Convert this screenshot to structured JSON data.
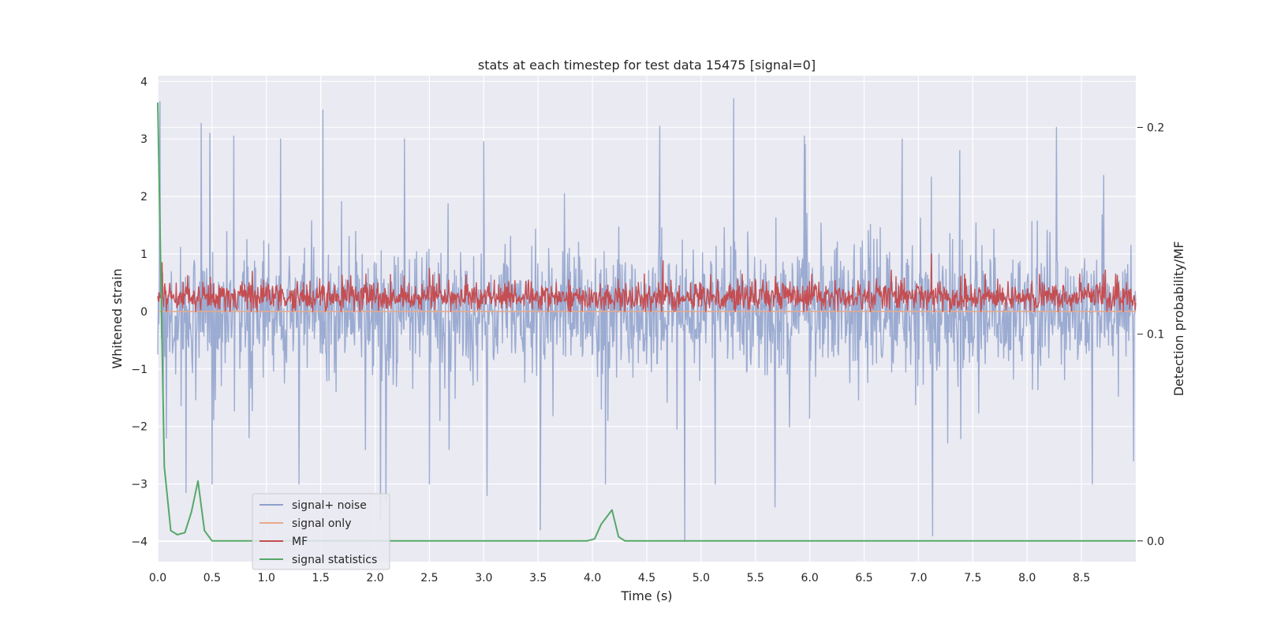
{
  "chart_data": {
    "type": "line",
    "title": "stats at each timestep for test data 15475 [signal=0]",
    "xlabel": "Time (s)",
    "ylabel": "Whitened strain",
    "y2label": "Detection probability/MF",
    "xlim": [
      0,
      9.0
    ],
    "ylim": [
      -4.35,
      4.1
    ],
    "y2lim": [
      -0.01,
      0.225
    ],
    "x_ticks": [
      0.0,
      0.5,
      1.0,
      1.5,
      2.0,
      2.5,
      3.0,
      3.5,
      4.0,
      4.5,
      5.0,
      5.5,
      6.0,
      6.5,
      7.0,
      7.5,
      8.0,
      8.5
    ],
    "x_tick_labels": [
      "0.0",
      "0.5",
      "1.0",
      "1.5",
      "2.0",
      "2.5",
      "3.0",
      "3.5",
      "4.0",
      "4.5",
      "5.0",
      "5.5",
      "6.0",
      "6.5",
      "7.0",
      "7.5",
      "8.0",
      "8.5"
    ],
    "y_ticks": [
      4,
      3,
      2,
      1,
      0,
      -1,
      -2,
      -3,
      -4
    ],
    "y_tick_labels": [
      "4",
      "3",
      "2",
      "1",
      "0",
      "−1",
      "−2",
      "−3",
      "−4"
    ],
    "y2_ticks": [
      0.2,
      0.1,
      0.0
    ],
    "y2_tick_labels": [
      "0.2",
      "0.1",
      "0.0"
    ],
    "grid": true,
    "legend_position": "lower-left",
    "colors": {
      "signal_noise": "#8da0cb",
      "signal_only": "#e8a98a",
      "mf": "#c44e52",
      "signal_statistics": "#55a868",
      "plot_background": "#eaeaf2",
      "grid": "#ffffff"
    },
    "series": [
      {
        "name": "signal+ noise",
        "axis": "left",
        "style": "noise",
        "sample_count": 1800,
        "seed": 15475,
        "amplitude": 0.75,
        "peaks": [
          {
            "x": 0.02,
            "y": 3.65
          },
          {
            "x": 0.05,
            "y": -1.45
          },
          {
            "x": 0.08,
            "y": -2.2
          },
          {
            "x": 0.4,
            "y": 3.27
          },
          {
            "x": 0.48,
            "y": 3.1
          },
          {
            "x": 0.5,
            "y": -3.0
          },
          {
            "x": 0.26,
            "y": -3.15
          },
          {
            "x": 0.7,
            "y": 3.05
          },
          {
            "x": 1.13,
            "y": 3.0
          },
          {
            "x": 1.52,
            "y": 3.5
          },
          {
            "x": 1.3,
            "y": -3.0
          },
          {
            "x": 2.05,
            "y": -3.6
          },
          {
            "x": 2.1,
            "y": -3.3
          },
          {
            "x": 2.27,
            "y": 3.0
          },
          {
            "x": 2.5,
            "y": -3.0
          },
          {
            "x": 3.0,
            "y": 2.95
          },
          {
            "x": 3.03,
            "y": -3.2
          },
          {
            "x": 3.52,
            "y": -3.8
          },
          {
            "x": 4.12,
            "y": -3.0
          },
          {
            "x": 4.62,
            "y": 3.22
          },
          {
            "x": 4.85,
            "y": -4.0
          },
          {
            "x": 5.3,
            "y": 3.7
          },
          {
            "x": 5.13,
            "y": -3.0
          },
          {
            "x": 5.68,
            "y": -3.4
          },
          {
            "x": 5.95,
            "y": 3.05
          },
          {
            "x": 6.85,
            "y": 3.0
          },
          {
            "x": 7.13,
            "y": -3.9
          },
          {
            "x": 7.38,
            "y": 2.8
          },
          {
            "x": 8.27,
            "y": 3.2
          },
          {
            "x": 8.6,
            "y": -3.0
          },
          {
            "x": 8.98,
            "y": -2.6
          }
        ]
      },
      {
        "name": "signal only",
        "axis": "left",
        "style": "flat",
        "x": [
          0.0,
          9.0
        ],
        "y": [
          0.0,
          0.0
        ]
      },
      {
        "name": "MF",
        "axis": "left",
        "style": "noise-positive",
        "sample_count": 1800,
        "seed": 7.1,
        "baseline": 0.25,
        "amplitude": 0.17,
        "peaks": [
          {
            "x": 0.04,
            "y": 0.85
          },
          {
            "x": 0.87,
            "y": 0.7
          },
          {
            "x": 2.5,
            "y": 0.75
          },
          {
            "x": 4.65,
            "y": 0.88
          },
          {
            "x": 6.75,
            "y": 0.72
          },
          {
            "x": 7.12,
            "y": 1.0
          },
          {
            "x": 8.72,
            "y": 0.72
          }
        ]
      },
      {
        "name": "signal statistics",
        "axis": "right",
        "style": "line",
        "x": [
          0.0,
          0.06,
          0.12,
          0.18,
          0.25,
          0.31,
          0.37,
          0.43,
          0.5,
          1.0,
          2.0,
          3.0,
          3.95,
          4.02,
          4.08,
          4.18,
          4.24,
          4.3,
          5.0,
          6.0,
          7.0,
          8.0,
          9.0
        ],
        "y": [
          0.212,
          0.036,
          0.005,
          0.003,
          0.004,
          0.014,
          0.029,
          0.005,
          0.0,
          0.0,
          0.0,
          0.0,
          0.0,
          0.001,
          0.008,
          0.015,
          0.002,
          0.0,
          0.0,
          0.0,
          0.0,
          0.0,
          0.0
        ]
      }
    ]
  }
}
